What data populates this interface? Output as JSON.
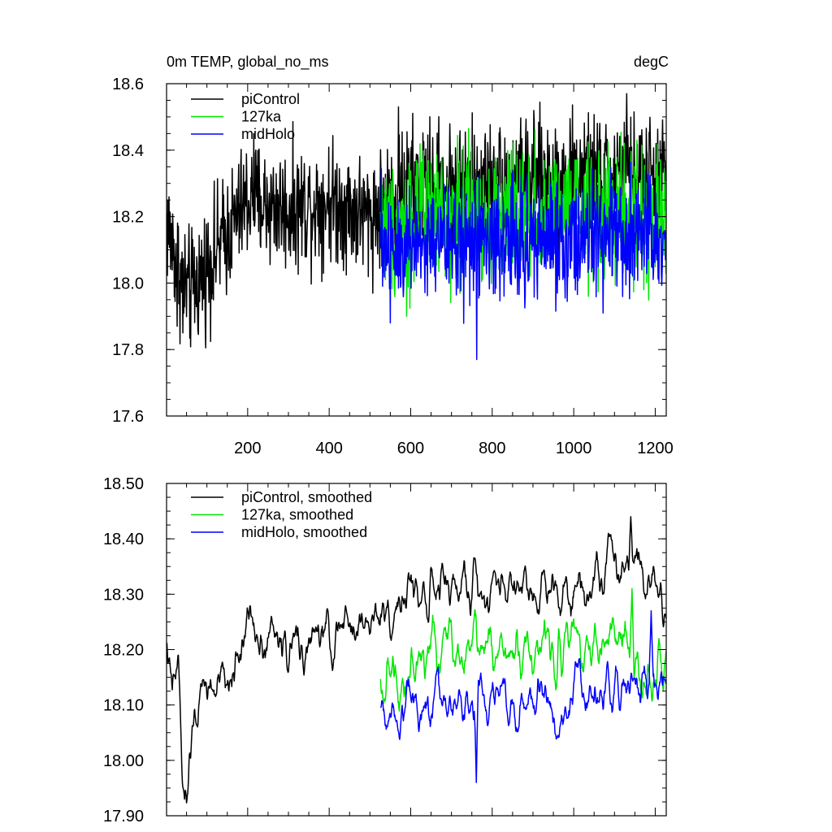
{
  "chart_data": [
    {
      "type": "line",
      "title": "0m TEMP, global_no_ms",
      "units": "degC",
      "xlabel": "",
      "ylabel": "",
      "xlim": [
        1,
        1227
      ],
      "ylim": [
        17.6,
        18.6
      ],
      "x_ticks": [
        200,
        400,
        600,
        800,
        1000,
        1200
      ],
      "x_tick_labels": [
        "200",
        "400",
        "600",
        "800",
        "1000",
        "1200"
      ],
      "y_ticks": [
        17.6,
        17.8,
        18.0,
        18.2,
        18.4,
        18.6
      ],
      "y_tick_labels": [
        "17.6",
        "17.8",
        "18.0",
        "18.2",
        "18.4",
        "18.6"
      ],
      "legend_position": "top-left",
      "series": [
        {
          "name": "piControl",
          "color": "#000000",
          "x_start": 1,
          "x_end": 1227,
          "mean_start": 18.1,
          "mean_end": 18.32,
          "anchors": [
            [
              1,
              18.18
            ],
            [
              40,
              18.0
            ],
            [
              60,
              17.97
            ],
            [
              150,
              18.15
            ],
            [
              200,
              18.25
            ],
            [
              300,
              18.22
            ],
            [
              400,
              18.25
            ],
            [
              500,
              18.2
            ],
            [
              600,
              18.3
            ],
            [
              800,
              18.3
            ],
            [
              1000,
              18.32
            ],
            [
              1227,
              18.32
            ]
          ],
          "noise_amp": 0.09,
          "extremes": [
            [
              41,
              17.85
            ],
            [
              27,
              17.87
            ],
            [
              570,
              18.53
            ],
            [
              1130,
              18.57
            ],
            [
              215,
              18.45
            ]
          ]
        },
        {
          "name": "127ka",
          "color": "#00e600",
          "x_start": 526,
          "x_end": 1227,
          "anchors": [
            [
              526,
              18.17
            ],
            [
              700,
              18.2
            ],
            [
              900,
              18.2
            ],
            [
              1100,
              18.2
            ],
            [
              1227,
              18.18
            ]
          ],
          "noise_amp": 0.1,
          "extremes": [
            [
              590,
              17.9
            ],
            [
              905,
              18.46
            ],
            [
              1155,
              18.43
            ]
          ]
        },
        {
          "name": "midHolo",
          "color": "#0000ff",
          "x_start": 526,
          "x_end": 1227,
          "anchors": [
            [
              526,
              18.12
            ],
            [
              700,
              18.12
            ],
            [
              900,
              18.13
            ],
            [
              1100,
              18.13
            ],
            [
              1227,
              18.15
            ]
          ],
          "noise_amp": 0.09,
          "extremes": [
            [
              762,
              17.77
            ],
            [
              550,
              17.88
            ],
            [
              1072,
              17.91
            ]
          ]
        }
      ]
    },
    {
      "type": "line",
      "title": "",
      "xlabel": "",
      "ylabel": "",
      "xlim": [
        1,
        1227
      ],
      "ylim": [
        17.9,
        18.5
      ],
      "x_ticks": [
        200,
        400,
        600,
        800,
        1000,
        1200
      ],
      "y_ticks": [
        17.9,
        18.0,
        18.1,
        18.2,
        18.3,
        18.4,
        18.5
      ],
      "y_tick_labels": [
        "17.90",
        "18.00",
        "18.10",
        "18.20",
        "18.30",
        "18.40",
        "18.50"
      ],
      "legend_position": "top-left",
      "series": [
        {
          "name": "piControl, smoothed",
          "color": "#000000",
          "x_start": 1,
          "x_end": 1227,
          "anchors": [
            [
              1,
              18.22
            ],
            [
              15,
              18.1
            ],
            [
              30,
              18.18
            ],
            [
              40,
              17.95
            ],
            [
              50,
              17.93
            ],
            [
              70,
              18.08
            ],
            [
              100,
              18.13
            ],
            [
              150,
              18.13
            ],
            [
              200,
              18.25
            ],
            [
              250,
              18.23
            ],
            [
              300,
              18.2
            ],
            [
              400,
              18.22
            ],
            [
              500,
              18.25
            ],
            [
              600,
              18.3
            ],
            [
              800,
              18.32
            ],
            [
              1000,
              18.32
            ],
            [
              1100,
              18.35
            ],
            [
              1150,
              18.38
            ],
            [
              1200,
              18.33
            ],
            [
              1227,
              18.28
            ]
          ],
          "noise_amp": 0.04,
          "extremes": [
            [
              45,
              17.93
            ],
            [
              1140,
              18.44
            ],
            [
              1085,
              18.41
            ]
          ]
        },
        {
          "name": "127ka, smoothed",
          "color": "#00e600",
          "x_start": 526,
          "x_end": 1227,
          "anchors": [
            [
              526,
              18.14
            ],
            [
              600,
              18.17
            ],
            [
              700,
              18.22
            ],
            [
              800,
              18.2
            ],
            [
              900,
              18.2
            ],
            [
              1000,
              18.22
            ],
            [
              1100,
              18.21
            ],
            [
              1227,
              18.15
            ]
          ],
          "noise_amp": 0.045,
          "extremes": [
            [
              1143,
              18.31
            ]
          ]
        },
        {
          "name": "midHolo, smoothed",
          "color": "#0000ff",
          "x_start": 526,
          "x_end": 1227,
          "anchors": [
            [
              526,
              18.09
            ],
            [
              600,
              18.12
            ],
            [
              700,
              18.1
            ],
            [
              800,
              18.11
            ],
            [
              900,
              18.1
            ],
            [
              1000,
              18.11
            ],
            [
              1100,
              18.13
            ],
            [
              1227,
              18.14
            ]
          ],
          "noise_amp": 0.04,
          "extremes": [
            [
              761,
              17.96
            ],
            [
              1190,
              18.27
            ]
          ]
        }
      ]
    }
  ]
}
